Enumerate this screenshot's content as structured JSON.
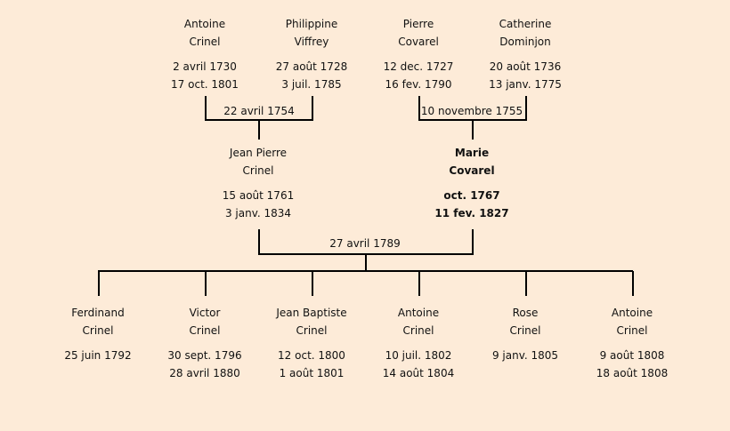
{
  "grandparents": [
    {
      "first": "Antoine",
      "last": "Crinel",
      "birth": "2 avril 1730",
      "death": "17 oct. 1801"
    },
    {
      "first": "Philippine",
      "last": "Viffrey",
      "birth": "27 août 1728",
      "death": "3 juil. 1785"
    },
    {
      "first": "Pierre",
      "last": "Covarel",
      "birth": "12 dec. 1727",
      "death": "16 fev. 1790"
    },
    {
      "first": "Catherine",
      "last": "Dominjon",
      "birth": "20 août 1736",
      "death": "13 janv. 1775"
    }
  ],
  "grandparent_marriages": [
    "22 avril 1754",
    "10 novembre 1755"
  ],
  "parents": [
    {
      "first": "Jean Pierre",
      "last": "Crinel",
      "birth": "15 août 1761",
      "death": "3 janv. 1834"
    },
    {
      "first": "Marie",
      "last": "Covarel",
      "birth": "oct. 1767",
      "death": "11 fev. 1827"
    }
  ],
  "parent_marriage": "27 avril 1789",
  "children": [
    {
      "first": "Ferdinand",
      "last": "Crinel",
      "birth": "25 juin 1792",
      "death": ""
    },
    {
      "first": "Victor",
      "last": "Crinel",
      "birth": "30 sept. 1796",
      "death": "28 avril 1880"
    },
    {
      "first": "Jean Baptiste",
      "last": "Crinel",
      "birth": "12 oct. 1800",
      "death": "1 août 1801"
    },
    {
      "first": "Antoine",
      "last": "Crinel",
      "birth": "10 juil. 1802",
      "death": "14 août 1804"
    },
    {
      "first": "Rose",
      "last": "Crinel",
      "birth": "9 janv. 1805",
      "death": ""
    },
    {
      "first": "Antoine",
      "last": "Crinel",
      "birth": "9 août 1808",
      "death": "18 août 1808"
    }
  ],
  "colors": {
    "background": "#fdebd8",
    "lines": "#000000"
  }
}
